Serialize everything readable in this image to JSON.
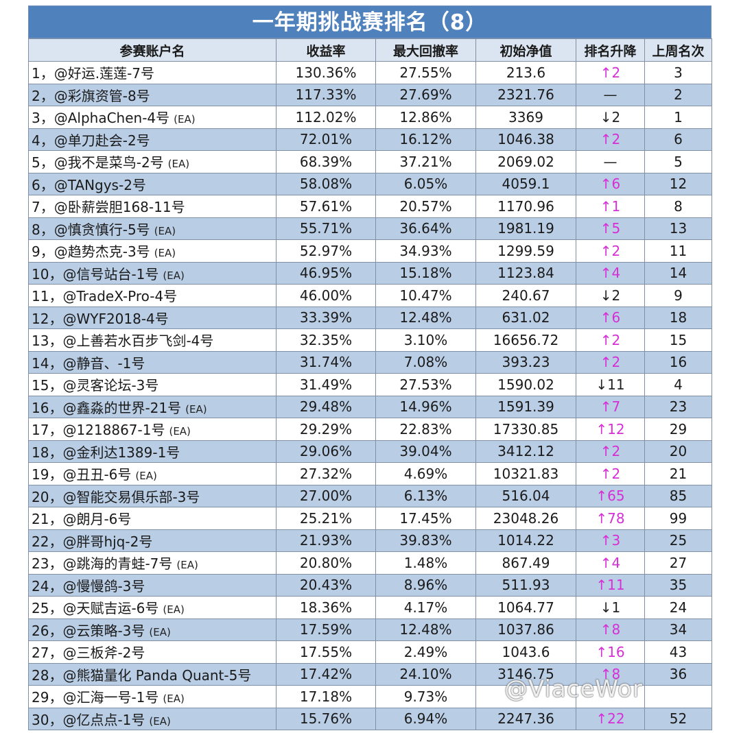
{
  "title": "一年期挑战赛排名（8）",
  "headers": [
    "参赛账户名",
    "收益率",
    "最大回撤率",
    "初始净值",
    "排名升降",
    "上周名次"
  ],
  "ea_tag": "(EA)",
  "colors": {
    "header_blue": "#4f81bd",
    "row_blue": "#b9cde5",
    "up_arrow": "#d62fd6"
  },
  "rows": [
    {
      "name": "1，@好运.莲莲-7号",
      "ea": false,
      "ret": "130.36%",
      "dd": "27.55%",
      "nav": "213.6",
      "change": "↑2",
      "dir": "up",
      "last": "3"
    },
    {
      "name": "2，@彩旗资管-8号",
      "ea": false,
      "ret": "117.33%",
      "dd": "27.69%",
      "nav": "2321.76",
      "change": "—",
      "dir": "same",
      "last": "2"
    },
    {
      "name": "3，@AlphaChen-4号",
      "ea": true,
      "ret": "112.02%",
      "dd": "12.86%",
      "nav": "3369",
      "change": "↓2",
      "dir": "down",
      "last": "1"
    },
    {
      "name": "4，@单刀赴会-2号",
      "ea": false,
      "ret": "72.01%",
      "dd": "16.12%",
      "nav": "1046.38",
      "change": "↑2",
      "dir": "up",
      "last": "6"
    },
    {
      "name": "5，@我不是菜鸟-2号",
      "ea": true,
      "ret": "68.39%",
      "dd": "37.21%",
      "nav": "2069.02",
      "change": "—",
      "dir": "same",
      "last": "5"
    },
    {
      "name": "6，@TANgys-2号",
      "ea": false,
      "ret": "58.08%",
      "dd": "6.05%",
      "nav": "4059.1",
      "change": "↑6",
      "dir": "up",
      "last": "12"
    },
    {
      "name": "7，@卧薪尝胆168-11号",
      "ea": false,
      "ret": "57.61%",
      "dd": "20.57%",
      "nav": "1170.96",
      "change": "↑1",
      "dir": "up",
      "last": "8"
    },
    {
      "name": "8，@慎贪慎行-5号",
      "ea": true,
      "ret": "55.71%",
      "dd": "36.64%",
      "nav": "1981.19",
      "change": "↑5",
      "dir": "up",
      "last": "13"
    },
    {
      "name": "9，@趋势杰克-3号",
      "ea": true,
      "ret": "52.97%",
      "dd": "34.93%",
      "nav": "1299.59",
      "change": "↑2",
      "dir": "up",
      "last": "11"
    },
    {
      "name": "10，@信号站台-1号",
      "ea": true,
      "ret": "46.95%",
      "dd": "15.18%",
      "nav": "1123.84",
      "change": "↑4",
      "dir": "up",
      "last": "14"
    },
    {
      "name": "11，@TradeX-Pro-4号",
      "ea": false,
      "ret": "46.00%",
      "dd": "10.47%",
      "nav": "240.67",
      "change": "↓2",
      "dir": "down",
      "last": "9"
    },
    {
      "name": "12，@WYF2018-4号",
      "ea": false,
      "ret": "33.39%",
      "dd": "12.48%",
      "nav": "631.02",
      "change": "↑6",
      "dir": "up",
      "last": "18"
    },
    {
      "name": "13，@上善若水百步飞剑-4号",
      "ea": false,
      "ret": "32.35%",
      "dd": "3.10%",
      "nav": "16656.72",
      "change": "↑2",
      "dir": "up",
      "last": "15"
    },
    {
      "name": "14，@静音、-1号",
      "ea": false,
      "ret": "31.74%",
      "dd": "7.08%",
      "nav": "393.23",
      "change": "↑2",
      "dir": "up",
      "last": "16"
    },
    {
      "name": "15，@灵客论坛-3号",
      "ea": false,
      "ret": "31.49%",
      "dd": "27.53%",
      "nav": "1590.02",
      "change": "↓11",
      "dir": "down",
      "last": "4"
    },
    {
      "name": "16，@鑫淼的世界-21号",
      "ea": true,
      "ret": "29.48%",
      "dd": "14.96%",
      "nav": "1591.39",
      "change": "↑7",
      "dir": "up",
      "last": "23"
    },
    {
      "name": "17，@1218867-1号",
      "ea": true,
      "ret": "29.29%",
      "dd": "22.83%",
      "nav": "17330.85",
      "change": "↑12",
      "dir": "up",
      "last": "29"
    },
    {
      "name": "18，@金利达1389-1号",
      "ea": false,
      "ret": "29.06%",
      "dd": "39.04%",
      "nav": "3412.12",
      "change": "↑2",
      "dir": "up",
      "last": "20"
    },
    {
      "name": "19，@丑丑-6号",
      "ea": true,
      "ret": "27.32%",
      "dd": "4.69%",
      "nav": "10321.83",
      "change": "↑2",
      "dir": "up",
      "last": "21"
    },
    {
      "name": "20，@智能交易俱乐部-3号",
      "ea": false,
      "ret": "27.00%",
      "dd": "6.13%",
      "nav": "516.04",
      "change": "↑65",
      "dir": "up",
      "last": "85"
    },
    {
      "name": "21，@朗月-6号",
      "ea": false,
      "ret": "25.21%",
      "dd": "17.45%",
      "nav": "23048.26",
      "change": "↑78",
      "dir": "up",
      "last": "99"
    },
    {
      "name": "22，@胖哥hjq-2号",
      "ea": false,
      "ret": "21.93%",
      "dd": "39.83%",
      "nav": "1014.22",
      "change": "↑3",
      "dir": "up",
      "last": "25"
    },
    {
      "name": "23，@跳海的青蛙-7号",
      "ea": true,
      "ret": "20.80%",
      "dd": "1.48%",
      "nav": "867.49",
      "change": "↑4",
      "dir": "up",
      "last": "27"
    },
    {
      "name": "24，@慢慢鸽-3号",
      "ea": false,
      "ret": "20.43%",
      "dd": "8.96%",
      "nav": "511.93",
      "change": "↑11",
      "dir": "up",
      "last": "35"
    },
    {
      "name": "25，@天赋吉运-6号",
      "ea": true,
      "ret": "18.36%",
      "dd": "4.17%",
      "nav": "1064.77",
      "change": "↓1",
      "dir": "down",
      "last": "24"
    },
    {
      "name": "26，@云策略-3号",
      "ea": true,
      "ret": "17.59%",
      "dd": "12.48%",
      "nav": "1037.86",
      "change": "↑8",
      "dir": "up",
      "last": "34"
    },
    {
      "name": "27，@三板斧-2号",
      "ea": false,
      "ret": "17.55%",
      "dd": "2.49%",
      "nav": "1043.6",
      "change": "↑16",
      "dir": "up",
      "last": "43"
    },
    {
      "name": "28，@熊猫量化 Panda Quant-5号",
      "ea": false,
      "ret": "17.42%",
      "dd": "24.10%",
      "nav": "3146.75",
      "change": "↑8",
      "dir": "up",
      "last": "36"
    },
    {
      "name": "29，@汇海一号-1号",
      "ea": true,
      "ret": "17.18%",
      "dd": "9.73%",
      "nav": "",
      "change": "",
      "dir": "up",
      "last": ""
    },
    {
      "name": "30，@亿点点-1号",
      "ea": true,
      "ret": "15.76%",
      "dd": "6.94%",
      "nav": "2247.36",
      "change": "↑22",
      "dir": "up",
      "last": "52"
    }
  ],
  "watermark": "@ViaceWor"
}
